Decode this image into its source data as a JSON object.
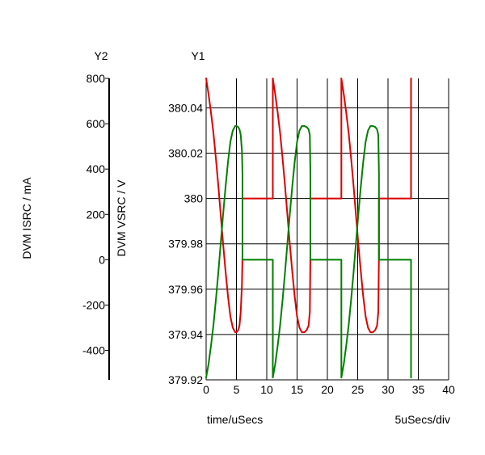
{
  "chart_data": {
    "type": "line",
    "xlabel": "time/uSecs",
    "x_scale_label": "5uSecs/div",
    "y1_axis_title": "Y1",
    "y2_axis_title": "Y2",
    "y1_label": "DVM VSRC / V",
    "y2_label": "DVM ISRC / mA",
    "xlim": [
      0,
      40
    ],
    "y1lim": [
      379.92,
      380.053
    ],
    "y2lim": [
      -530,
      800
    ],
    "x_ticks": [
      "0",
      "5",
      "10",
      "15",
      "20",
      "25",
      "30",
      "35",
      "40"
    ],
    "y1_ticks": [
      "379.92",
      "379.94",
      "379.96",
      "379.98",
      "380",
      "380.02",
      "380.04"
    ],
    "y2_ticks": [
      "-400",
      "-200",
      "0",
      "200",
      "400",
      "600",
      "800"
    ],
    "grid": true,
    "colors": {
      "vsrc": "#dd0000",
      "isrc": "#008000",
      "grid": "#000000"
    },
    "series": [
      {
        "axis": "y1",
        "color": "#dd0000",
        "x": [
          0,
          0.4,
          0.8,
          1.2,
          1.6,
          2.0,
          2.4,
          2.8,
          3.2,
          3.6,
          4.0,
          4.4,
          4.8,
          5.0,
          5.3,
          5.5,
          5.7,
          5.9,
          6.0,
          6.0,
          11.0,
          11.0,
          11.4,
          11.8,
          12.2,
          12.6,
          13.0,
          13.4,
          13.8,
          14.2,
          14.6,
          15.0,
          15.4,
          15.8,
          16.2,
          16.6,
          16.9,
          17.1,
          17.2,
          17.2,
          22.3,
          22.3,
          22.7,
          23.1,
          23.5,
          23.9,
          24.3,
          24.7,
          25.1,
          25.5,
          25.9,
          26.3,
          26.7,
          27.1,
          27.5,
          27.9,
          28.2,
          28.4,
          28.5,
          28.5,
          33.8,
          33.8
        ],
        "y": [
          380.053,
          380.046,
          380.038,
          380.029,
          380.018,
          380.006,
          379.993,
          379.98,
          379.968,
          379.957,
          379.948,
          379.943,
          379.941,
          379.941,
          379.942,
          379.944,
          379.95,
          379.962,
          379.975,
          380.0,
          380.0,
          380.053,
          380.046,
          380.038,
          380.029,
          380.018,
          380.006,
          379.993,
          379.98,
          379.968,
          379.957,
          379.948,
          379.943,
          379.941,
          379.941,
          379.942,
          379.944,
          379.95,
          379.975,
          380.0,
          380.0,
          380.053,
          380.046,
          380.038,
          380.029,
          380.018,
          380.006,
          379.993,
          379.98,
          379.968,
          379.957,
          379.948,
          379.943,
          379.941,
          379.941,
          379.942,
          379.944,
          379.95,
          379.975,
          380.0,
          380.0,
          380.053
        ]
      },
      {
        "axis": "y2",
        "color": "#008000",
        "x": [
          0,
          0.4,
          0.8,
          1.2,
          1.6,
          2.0,
          2.4,
          2.8,
          3.2,
          3.6,
          4.0,
          4.4,
          4.8,
          5.0,
          5.3,
          5.5,
          5.7,
          5.9,
          6.0,
          6.0,
          11.0,
          11.0,
          11.4,
          11.8,
          12.2,
          12.6,
          13.0,
          13.4,
          13.8,
          14.2,
          14.6,
          15.0,
          15.4,
          15.8,
          16.2,
          16.6,
          16.9,
          17.1,
          17.2,
          17.2,
          22.3,
          22.3,
          22.7,
          23.1,
          23.5,
          23.9,
          24.3,
          24.7,
          25.1,
          25.5,
          25.9,
          26.3,
          26.7,
          27.1,
          27.5,
          27.9,
          28.2,
          28.4,
          28.5,
          28.5,
          33.8,
          33.8
        ],
        "y": [
          -520,
          -460,
          -380,
          -290,
          -180,
          -60,
          70,
          200,
          320,
          430,
          520,
          570,
          590,
          590,
          585,
          575,
          550,
          480,
          380,
          0,
          0,
          -520,
          -460,
          -380,
          -290,
          -180,
          -60,
          70,
          200,
          320,
          430,
          520,
          570,
          590,
          590,
          585,
          575,
          550,
          380,
          0,
          0,
          -520,
          -460,
          -380,
          -290,
          -180,
          -60,
          70,
          200,
          320,
          430,
          520,
          570,
          590,
          590,
          585,
          575,
          550,
          380,
          0,
          0,
          -520
        ]
      }
    ]
  }
}
